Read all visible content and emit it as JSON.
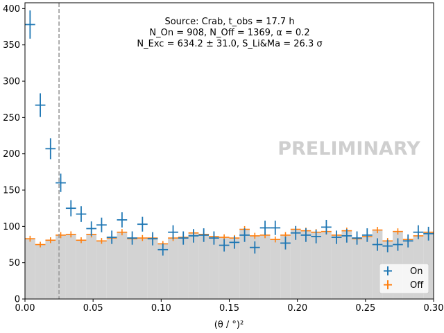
{
  "chart_data": {
    "type": "histogram",
    "xlabel": "(θ / °)²",
    "ylabel": "",
    "xlim": [
      0,
      0.3
    ],
    "ylim": [
      0,
      408
    ],
    "x_ticks": [
      0,
      0.05,
      0.1,
      0.15,
      0.2,
      0.25,
      0.3
    ],
    "x_tick_labels": [
      "0.00",
      "0.05",
      "0.10",
      "0.15",
      "0.20",
      "0.25",
      "0.30"
    ],
    "y_ticks": [
      0,
      50,
      100,
      150,
      200,
      250,
      300,
      350,
      400
    ],
    "y_tick_labels": [
      "0",
      "50",
      "100",
      "150",
      "200",
      "250",
      "300",
      "350",
      "400"
    ],
    "bin_width": 0.0075,
    "theta2_cut": 0.025,
    "info_lines": [
      "Source: Crab, t_obs = 17.7 h",
      "N_On = 908, N_Off = 1369, α = 0.2",
      "N_Exc = 634.2 ± 31.0, S_Li&Ma = 26.3 σ"
    ],
    "watermark": "PRELIMINARY",
    "legend_position": "lower right",
    "series": [
      {
        "name": "On",
        "color": "#1f77b4",
        "x": [
          0.00375,
          0.01125,
          0.01875,
          0.02625,
          0.03375,
          0.04125,
          0.04875,
          0.05625,
          0.06375,
          0.07125,
          0.07875,
          0.08625,
          0.09375,
          0.10125,
          0.10875,
          0.11625,
          0.12375,
          0.13125,
          0.13875,
          0.14625,
          0.15375,
          0.16125,
          0.16875,
          0.17625,
          0.18375,
          0.19125,
          0.19875,
          0.20625,
          0.21375,
          0.22125,
          0.22875,
          0.23625,
          0.24375,
          0.25125,
          0.25875,
          0.26625,
          0.27375,
          0.28125,
          0.28875,
          0.29625
        ],
        "values": [
          378,
          267,
          207,
          160,
          125,
          117,
          97,
          102,
          85,
          109,
          84,
          103,
          83,
          68,
          92,
          84,
          87,
          88,
          84,
          74,
          78,
          88,
          71,
          98,
          98,
          77,
          91,
          88,
          86,
          99,
          85,
          87,
          84,
          88,
          75,
          73,
          75,
          80,
          92,
          90
        ]
      },
      {
        "name": "Off",
        "color": "#ff7f0e",
        "fill": "#d3d3d3",
        "x": [
          0.00375,
          0.01125,
          0.01875,
          0.02625,
          0.03375,
          0.04125,
          0.04875,
          0.05625,
          0.06375,
          0.07125,
          0.07875,
          0.08625,
          0.09375,
          0.10125,
          0.10875,
          0.11625,
          0.12375,
          0.13125,
          0.13875,
          0.14625,
          0.15375,
          0.16125,
          0.16875,
          0.17625,
          0.18375,
          0.19125,
          0.19875,
          0.20625,
          0.21375,
          0.22125,
          0.22875,
          0.23625,
          0.24375,
          0.25125,
          0.25875,
          0.26625,
          0.27375,
          0.28125,
          0.28875,
          0.29625
        ],
        "values": [
          83,
          75,
          81,
          88,
          89,
          81,
          89,
          80,
          84,
          92,
          83,
          84,
          84,
          76,
          84,
          85,
          91,
          89,
          86,
          85,
          84,
          96,
          87,
          88,
          82,
          88,
          96,
          94,
          92,
          93,
          88,
          94,
          83,
          86,
          95,
          80,
          93,
          82,
          87,
          92
        ]
      }
    ]
  }
}
